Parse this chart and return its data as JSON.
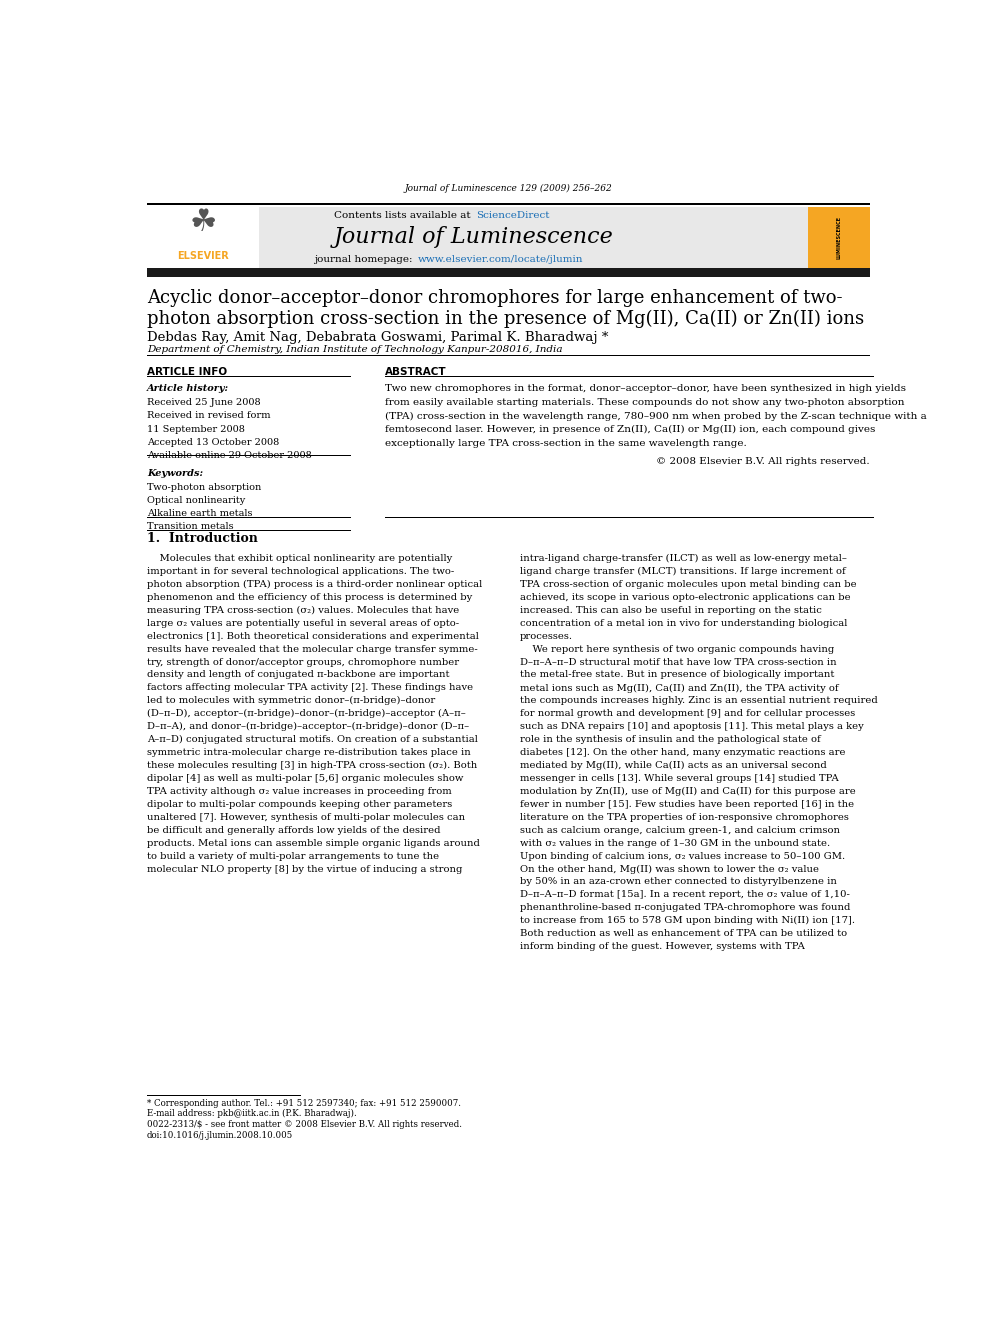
{
  "background_color": "#ffffff",
  "page_width": 9.92,
  "page_height": 13.23,
  "journal_header_text": "Journal of Luminescence 129 (2009) 256–262",
  "contents_text": "Contents lists available at ScienceDirect",
  "sciencedirect_color": "#1a6eb5",
  "journal_name": "Journal of Luminescence",
  "homepage_text": "journal homepage: www.elsevier.com/locate/jlumin",
  "homepage_url_color": "#1a6eb5",
  "header_bg_color": "#e8e8e8",
  "black_bar_color": "#1a1a1a",
  "elsevier_color": "#f5a623",
  "title_line1": "Acyclic donor–acceptor–donor chromophores for large enhancement of two-",
  "title_line2": "photon absorption cross-section in the presence of Mg(II), Ca(II) or Zn(II) ions",
  "authors": "Debdas Ray, Amit Nag, Debabrata Goswami, Parimal K. Bharadwaj *",
  "affiliation": "Department of Chemistry, Indian Institute of Technology Kanpur-208016, India",
  "article_info_title": "ARTICLE INFO",
  "abstract_title": "ABSTRACT",
  "article_history_label": "Article history:",
  "article_history": [
    "Received 25 June 2008",
    "Received in revised form",
    "11 September 2008",
    "Accepted 13 October 2008",
    "Available online 29 October 2008"
  ],
  "keywords_label": "Keywords:",
  "keywords": [
    "Two-photon absorption",
    "Optical nonlinearity",
    "Alkaline earth metals",
    "Transition metals"
  ],
  "abstract_lines": [
    "Two new chromophores in the format, donor–acceptor–donor, have been synthesized in high yields",
    "from easily available starting materials. These compounds do not show any two-photon absorption",
    "(TPA) cross-section in the wavelength range, 780–900 nm when probed by the Z-scan technique with a",
    "femtosecond laser. However, in presence of Zn(II), Ca(II) or Mg(II) ion, each compound gives",
    "exceptionally large TPA cross-section in the same wavelength range."
  ],
  "copyright_text": "© 2008 Elsevier B.V. All rights reserved.",
  "intro_title": "1.  Introduction",
  "intro_col1_lines": [
    "    Molecules that exhibit optical nonlinearity are potentially",
    "important in for several technological applications. The two-",
    "photon absorption (TPA) process is a third-order nonlinear optical",
    "phenomenon and the efficiency of this process is determined by",
    "measuring TPA cross-section (σ₂) values. Molecules that have",
    "large σ₂ values are potentially useful in several areas of opto-",
    "electronics [1]. Both theoretical considerations and experimental",
    "results have revealed that the molecular charge transfer symme-",
    "try, strength of donor/acceptor groups, chromophore number",
    "density and length of conjugated π-backbone are important",
    "factors affecting molecular TPA activity [2]. These findings have",
    "led to molecules with symmetric donor–(π-bridge)–donor",
    "(D–π–D), acceptor–(π-bridge)–donor–(π-bridge)–acceptor (A–π–",
    "D–π–A), and donor–(π-bridge)–acceptor–(π-bridge)–donor (D–π–",
    "A–π–D) conjugated structural motifs. On creation of a substantial",
    "symmetric intra-molecular charge re-distribution takes place in",
    "these molecules resulting [3] in high-TPA cross-section (σ₂). Both",
    "dipolar [4] as well as multi-polar [5,6] organic molecules show",
    "TPA activity although σ₂ value increases in proceeding from",
    "dipolar to multi-polar compounds keeping other parameters",
    "unaltered [7]. However, synthesis of multi-polar molecules can",
    "be difficult and generally affords low yields of the desired",
    "products. Metal ions can assemble simple organic ligands around",
    "to build a variety of multi-polar arrangements to tune the",
    "molecular NLO property [8] by the virtue of inducing a strong"
  ],
  "intro_col2_lines": [
    "intra-ligand charge-transfer (ILCT) as well as low-energy metal–",
    "ligand charge transfer (MLCT) transitions. If large increment of",
    "TPA cross-section of organic molecules upon metal binding can be",
    "achieved, its scope in various opto-electronic applications can be",
    "increased. This can also be useful in reporting on the static",
    "concentration of a metal ion in vivo for understanding biological",
    "processes.",
    "    We report here synthesis of two organic compounds having",
    "D–π–A–π–D structural motif that have low TPA cross-section in",
    "the metal-free state. But in presence of biologically important",
    "metal ions such as Mg(II), Ca(II) and Zn(II), the TPA activity of",
    "the compounds increases highly. Zinc is an essential nutrient required",
    "for normal growth and development [9] and for cellular processes",
    "such as DNA repairs [10] and apoptosis [11]. This metal plays a key",
    "role in the synthesis of insulin and the pathological state of",
    "diabetes [12]. On the other hand, many enzymatic reactions are",
    "mediated by Mg(II), while Ca(II) acts as an universal second",
    "messenger in cells [13]. While several groups [14] studied TPA",
    "modulation by Zn(II), use of Mg(II) and Ca(II) for this purpose are",
    "fewer in number [15]. Few studies have been reported [16] in the",
    "literature on the TPA properties of ion-responsive chromophores",
    "such as calcium orange, calcium green-1, and calcium crimson",
    "with σ₂ values in the range of 1–30 GM in the unbound state.",
    "Upon binding of calcium ions, σ₂ values increase to 50–100 GM.",
    "On the other hand, Mg(II) was shown to lower the σ₂ value",
    "by 50% in an aza-crown ether connected to distyrylbenzene in",
    "D–π–A–π–D format [15a]. In a recent report, the σ₂ value of 1,10-",
    "phenanthroline-based π-conjugated TPA-chromophore was found",
    "to increase from 165 to 578 GM upon binding with Ni(II) ion [17].",
    "Both reduction as well as enhancement of TPA can be utilized to",
    "inform binding of the guest. However, systems with TPA"
  ],
  "footnote_line1": "* Corresponding author. Tel.: +91 512 2597340; fax: +91 512 2590007.",
  "footnote_line2": "E-mail address: pkb@iitk.ac.in (P.K. Bharadwaj).",
  "footnote_line3": "0022-2313/$ - see front matter © 2008 Elsevier B.V. All rights reserved.",
  "footnote_line4": "doi:10.1016/j.jlumin.2008.10.005"
}
